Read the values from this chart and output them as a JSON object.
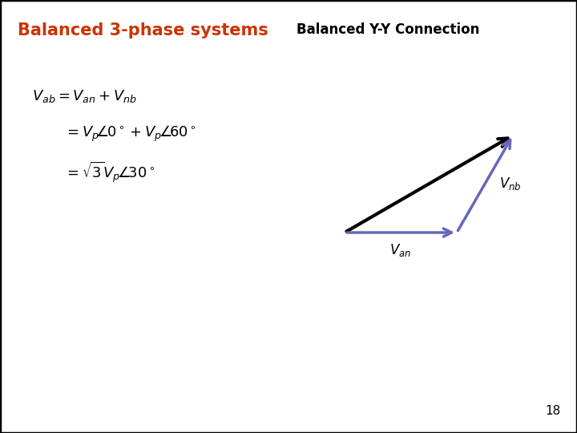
{
  "title_left": "Balanced 3-phase systems",
  "title_right": "Balanced Y-Y Connection",
  "title_left_color": "#CC3300",
  "title_right_color": "#000000",
  "title_fontsize": 15,
  "subtitle_fontsize": 12,
  "page_number": "18",
  "background_color": "#FFFFFF",
  "border_color": "#000000",
  "arrow_color_blue": "#6666BB",
  "arrow_color_black": "#000000",
  "arrow_linewidth": 2.5,
  "text_color": "#000000"
}
